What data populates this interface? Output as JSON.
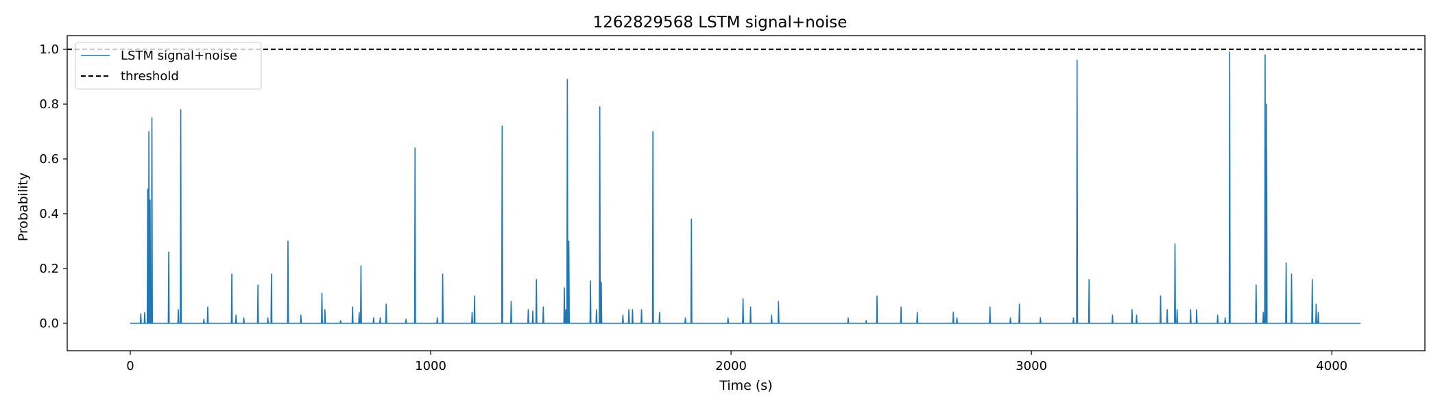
{
  "chart_data": {
    "type": "line",
    "title": "1262829568 LSTM signal+noise",
    "xlabel": "Time (s)",
    "ylabel": "Probability",
    "xlim": [
      -210,
      4310
    ],
    "ylim": [
      -0.1,
      1.05
    ],
    "xticks": [
      0,
      1000,
      2000,
      3000,
      4000
    ],
    "yticks": [
      0.0,
      0.2,
      0.4,
      0.6,
      0.8,
      1.0
    ],
    "xtick_labels": [
      "0",
      "1000",
      "2000",
      "3000",
      "4000"
    ],
    "ytick_labels": [
      "0.0",
      "0.2",
      "0.4",
      "0.6",
      "0.8",
      "1.0"
    ],
    "grid": false,
    "legend_position": "upper-left",
    "x_range": [
      0,
      4096
    ],
    "series": [
      {
        "name": "LSTM signal+noise",
        "color": "#1f77b4",
        "style": "solid",
        "baseline": 0.0,
        "peaks": [
          [
            35,
            0.035
          ],
          [
            48,
            0.04
          ],
          [
            58,
            0.49
          ],
          [
            62,
            0.7
          ],
          [
            66,
            0.45
          ],
          [
            72,
            0.75
          ],
          [
            128,
            0.26
          ],
          [
            160,
            0.05
          ],
          [
            168,
            0.78
          ],
          [
            245,
            0.015
          ],
          [
            258,
            0.06
          ],
          [
            338,
            0.18
          ],
          [
            352,
            0.03
          ],
          [
            378,
            0.02
          ],
          [
            425,
            0.14
          ],
          [
            458,
            0.02
          ],
          [
            470,
            0.18
          ],
          [
            525,
            0.3
          ],
          [
            568,
            0.03
          ],
          [
            638,
            0.11
          ],
          [
            648,
            0.05
          ],
          [
            700,
            0.01
          ],
          [
            740,
            0.06
          ],
          [
            762,
            0.04
          ],
          [
            768,
            0.21
          ],
          [
            810,
            0.02
          ],
          [
            832,
            0.02
          ],
          [
            852,
            0.07
          ],
          [
            918,
            0.015
          ],
          [
            948,
            0.64
          ],
          [
            1022,
            0.02
          ],
          [
            1040,
            0.18
          ],
          [
            1138,
            0.04
          ],
          [
            1146,
            0.1
          ],
          [
            1238,
            0.72
          ],
          [
            1268,
            0.08
          ],
          [
            1325,
            0.05
          ],
          [
            1340,
            0.045
          ],
          [
            1352,
            0.16
          ],
          [
            1375,
            0.06
          ],
          [
            1445,
            0.13
          ],
          [
            1450,
            0.05
          ],
          [
            1455,
            0.89
          ],
          [
            1460,
            0.3
          ],
          [
            1532,
            0.155
          ],
          [
            1552,
            0.05
          ],
          [
            1563,
            0.79
          ],
          [
            1568,
            0.15
          ],
          [
            1640,
            0.03
          ],
          [
            1660,
            0.05
          ],
          [
            1672,
            0.05
          ],
          [
            1702,
            0.05
          ],
          [
            1740,
            0.7
          ],
          [
            1762,
            0.04
          ],
          [
            1848,
            0.02
          ],
          [
            1868,
            0.38
          ],
          [
            1990,
            0.02
          ],
          [
            2040,
            0.09
          ],
          [
            2065,
            0.06
          ],
          [
            2135,
            0.03
          ],
          [
            2158,
            0.08
          ],
          [
            2390,
            0.02
          ],
          [
            2450,
            0.01
          ],
          [
            2486,
            0.1
          ],
          [
            2566,
            0.06
          ],
          [
            2620,
            0.04
          ],
          [
            2740,
            0.04
          ],
          [
            2752,
            0.02
          ],
          [
            2862,
            0.06
          ],
          [
            2930,
            0.02
          ],
          [
            2960,
            0.07
          ],
          [
            3030,
            0.02
          ],
          [
            3140,
            0.02
          ],
          [
            3152,
            0.96
          ],
          [
            3192,
            0.16
          ],
          [
            3270,
            0.03
          ],
          [
            3335,
            0.05
          ],
          [
            3350,
            0.03
          ],
          [
            3430,
            0.1
          ],
          [
            3452,
            0.05
          ],
          [
            3478,
            0.29
          ],
          [
            3485,
            0.05
          ],
          [
            3530,
            0.05
          ],
          [
            3550,
            0.05
          ],
          [
            3620,
            0.03
          ],
          [
            3645,
            0.02
          ],
          [
            3660,
            0.99
          ],
          [
            3748,
            0.14
          ],
          [
            3772,
            0.04
          ],
          [
            3778,
            0.98
          ],
          [
            3783,
            0.8
          ],
          [
            3848,
            0.22
          ],
          [
            3866,
            0.18
          ],
          [
            3935,
            0.16
          ],
          [
            3948,
            0.07
          ],
          [
            3955,
            0.04
          ]
        ]
      },
      {
        "name": "threshold",
        "color": "#000000",
        "style": "dashed",
        "y": 1.0
      }
    ]
  }
}
